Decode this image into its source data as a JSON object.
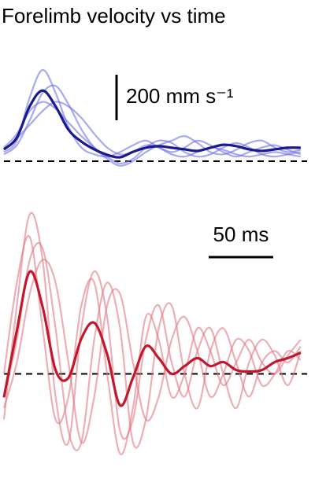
{
  "chart_data": [
    {
      "type": "line",
      "title": "Forelimb velocity vs time",
      "x": [
        0,
        10,
        20,
        30,
        40,
        50,
        60,
        70,
        80,
        90,
        100,
        110,
        120,
        130,
        140,
        150,
        160,
        170,
        180,
        190,
        200,
        210,
        220,
        230
      ],
      "xlim": [
        0,
        235
      ],
      "ylim": [
        -50,
        450
      ],
      "reference_line": 0,
      "scale_bar": {
        "value": 200,
        "label": "200 mm s⁻¹",
        "axis": "y"
      },
      "series": [
        {
          "color": "#6f6fe499",
          "values": [
            40,
            90,
            280,
            400,
            300,
            150,
            60,
            30,
            20,
            40,
            70,
            90,
            60,
            30,
            20,
            40,
            60,
            50,
            30,
            20,
            30,
            40,
            30,
            20
          ]
        },
        {
          "color": "#6f6fe499",
          "values": [
            60,
            120,
            220,
            260,
            230,
            170,
            110,
            60,
            20,
            -10,
            10,
            60,
            90,
            80,
            40,
            20,
            30,
            60,
            80,
            60,
            30,
            20,
            30,
            40
          ]
        },
        {
          "color": "#6f6fe499",
          "values": [
            30,
            70,
            180,
            300,
            330,
            250,
            140,
            60,
            10,
            -20,
            0,
            40,
            70,
            90,
            110,
            80,
            40,
            30,
            50,
            80,
            90,
            60,
            40,
            50
          ]
        },
        {
          "color": "#6f6fe499",
          "values": [
            50,
            100,
            160,
            220,
            260,
            240,
            190,
            120,
            60,
            30,
            40,
            70,
            60,
            40,
            60,
            90,
            70,
            40,
            20,
            40,
            60,
            70,
            50,
            30
          ]
        },
        {
          "color": "#1a1a8c",
          "values": [
            52,
            103,
            241,
            310,
            241,
            138,
            86,
            52,
            28,
            17,
            41,
            59,
            66,
            59,
            52,
            45,
            59,
            72,
            66,
            52,
            45,
            52,
            59,
            59
          ]
        }
      ]
    },
    {
      "type": "line",
      "x": [
        0,
        10,
        20,
        30,
        40,
        50,
        60,
        70,
        80,
        90,
        100,
        110,
        120,
        130,
        140,
        150,
        160,
        170,
        180,
        190,
        200,
        210,
        220,
        230
      ],
      "xlim": [
        0,
        235
      ],
      "ylim": [
        -450,
        750
      ],
      "reference_line": 0,
      "scale_bar": {
        "value": 50,
        "label": "50 ms",
        "axis": "x"
      },
      "series": [
        {
          "color": "#e07a8599",
          "values": [
            -200,
            300,
            700,
            500,
            -100,
            -300,
            200,
            450,
            250,
            -250,
            -200,
            150,
            300,
            50,
            -100,
            100,
            200,
            0,
            -150,
            50,
            150,
            80,
            -50,
            100
          ]
        },
        {
          "color": "#e07a8599",
          "values": [
            0,
            400,
            600,
            200,
            -200,
            -100,
            300,
            400,
            0,
            -350,
            -150,
            250,
            150,
            -100,
            0,
            200,
            100,
            -50,
            50,
            150,
            50,
            0,
            80,
            150
          ]
        },
        {
          "color": "#e07a8599",
          "values": [
            -100,
            150,
            500,
            550,
            200,
            -250,
            -300,
            150,
            400,
            200,
            -300,
            -200,
            200,
            300,
            0,
            -150,
            100,
            200,
            50,
            -100,
            50,
            100,
            50,
            120
          ]
        },
        {
          "color": "#e07a8599",
          "values": [
            -150,
            50,
            350,
            500,
            400,
            50,
            -300,
            -100,
            300,
            350,
            50,
            -200,
            -100,
            150,
            250,
            100,
            -100,
            0,
            150,
            100,
            -50,
            0,
            100,
            60
          ]
        },
        {
          "color": "#c0192e",
          "values": [
            -103,
            190,
            448,
            293,
            17,
            -17,
            155,
            224,
            86,
            -138,
            -17,
            121,
            69,
            0,
            34,
            69,
            34,
            52,
            17,
            10,
            17,
            52,
            69,
            93
          ]
        }
      ]
    }
  ]
}
